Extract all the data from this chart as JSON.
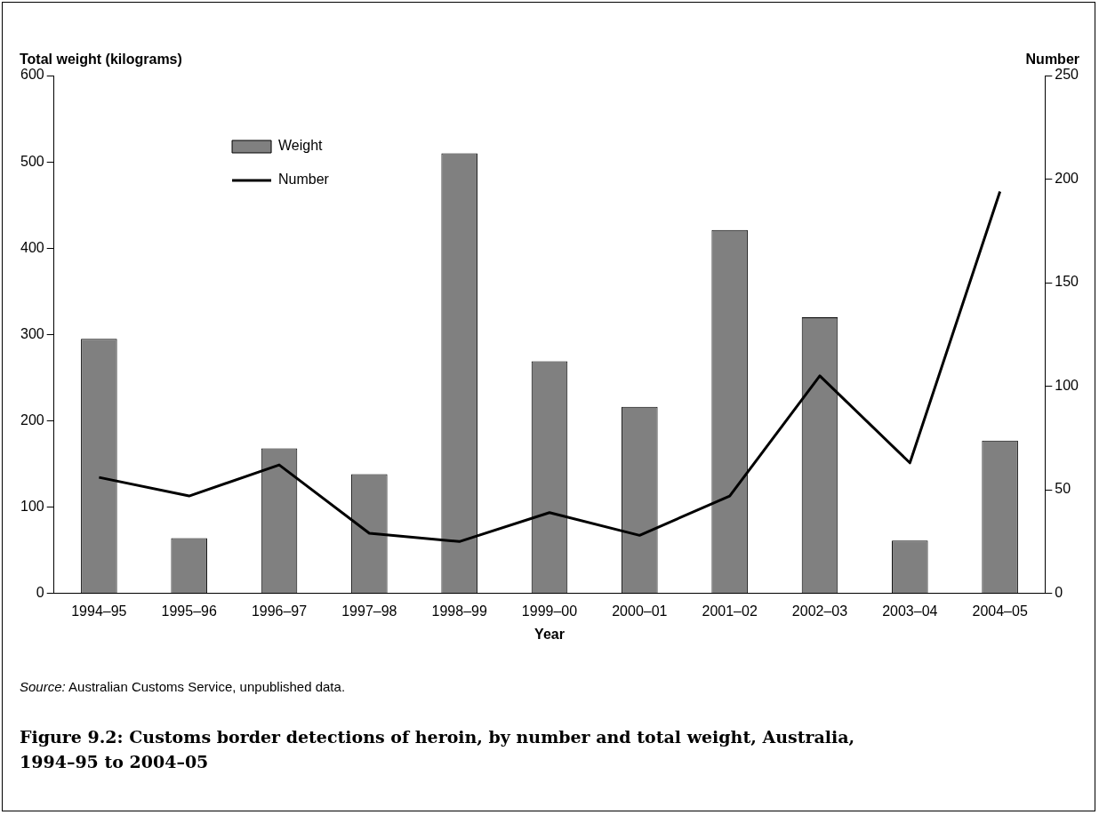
{
  "chart_data": {
    "type": "bar",
    "xlabel": "Year",
    "ylabel": "Total weight (kilograms)",
    "y2label": "Number",
    "categories": [
      "1994–95",
      "1995–96",
      "1996–97",
      "1997–98",
      "1998–99",
      "1999–00",
      "2000–01",
      "2001–02",
      "2002–03",
      "2003–04",
      "2004–05"
    ],
    "series": [
      {
        "name": "Weight",
        "color": "#808080",
        "values": [
          295,
          64,
          168,
          138,
          510,
          269,
          216,
          421,
          320,
          61,
          177
        ]
      },
      {
        "name": "Number",
        "type": "line",
        "axis": "y2",
        "color": "#000000",
        "values": [
          56,
          47,
          62,
          29,
          25,
          39,
          28,
          47,
          105,
          63,
          194
        ]
      }
    ],
    "ylim": [
      0,
      600
    ],
    "yticks": [
      0,
      100,
      200,
      300,
      400,
      500,
      600
    ],
    "y2lim": [
      0,
      250
    ],
    "y2ticks": [
      0,
      50,
      100,
      150,
      200,
      250
    ],
    "grid": false,
    "legend": "top left",
    "annotations": [
      "Source: Australian Customs Service, unpublished data.",
      "Figure 9.2: Customs border detections of heroin, by number and total weight, Australia, 1994–95 to 2004–05"
    ]
  }
}
